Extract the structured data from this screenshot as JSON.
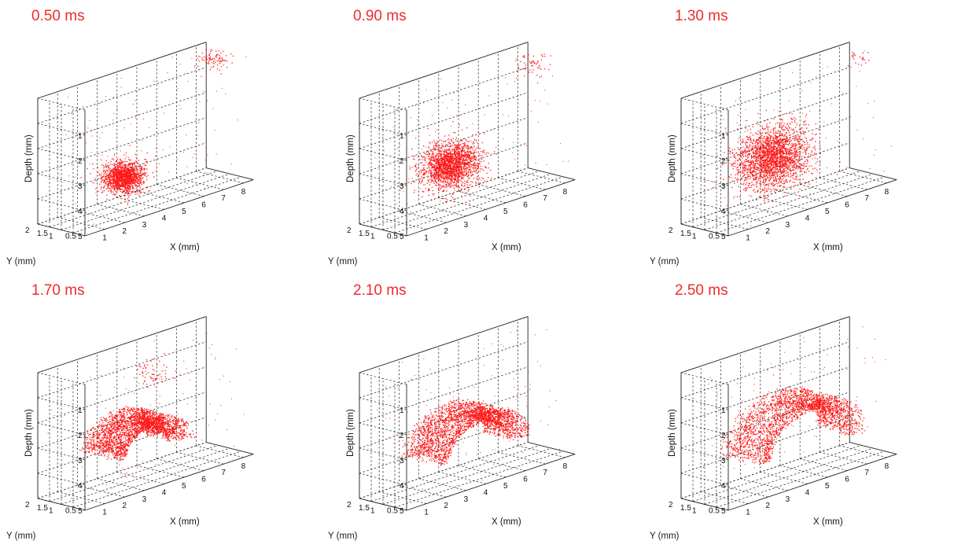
{
  "chart_data": [
    {
      "type": "scatter",
      "title": "0.50 ms",
      "xlabel": "X (mm)",
      "ylabel": "Y (mm)",
      "zlabel": "Depth (mm)",
      "x_ticks": [
        "1",
        "2",
        "3",
        "4",
        "5",
        "6",
        "7",
        "8"
      ],
      "y_ticks": [
        "0.5",
        "1",
        "1.5",
        "2"
      ],
      "z_ticks": [
        "1",
        "2",
        "3",
        "4",
        "5"
      ],
      "xlim": [
        0,
        8.5
      ],
      "ylim": [
        0,
        2
      ],
      "zlim": [
        0,
        5
      ],
      "z_reversed": true,
      "grid": true,
      "point_color": "#ff0000",
      "clusters": [
        {
          "x": 3.1,
          "y": 1.0,
          "z": 3.7,
          "rx": 0.75,
          "ry": 0.6,
          "rz": 0.55,
          "n": 1500
        },
        {
          "x": 7.7,
          "y": 1.0,
          "z": 0.1,
          "rx": 0.6,
          "ry": 0.5,
          "rz": 0.5,
          "n": 130
        }
      ]
    },
    {
      "type": "scatter",
      "title": "0.90 ms",
      "xlabel": "X (mm)",
      "ylabel": "Y (mm)",
      "zlabel": "Depth (mm)",
      "x_ticks": [
        "1",
        "2",
        "3",
        "4",
        "5",
        "6",
        "7",
        "8"
      ],
      "y_ticks": [
        "0.5",
        "1",
        "1.5",
        "2"
      ],
      "z_ticks": [
        "1",
        "2",
        "3",
        "4",
        "5"
      ],
      "xlim": [
        0,
        8.5
      ],
      "ylim": [
        0,
        2
      ],
      "zlim": [
        0,
        5
      ],
      "z_reversed": true,
      "grid": true,
      "point_color": "#ff0000",
      "clusters": [
        {
          "x": 3.4,
          "y": 1.0,
          "z": 3.3,
          "rx": 1.15,
          "ry": 0.75,
          "rz": 0.85,
          "n": 1900
        },
        {
          "x": 7.4,
          "y": 1.0,
          "z": 0.2,
          "rx": 0.6,
          "ry": 0.5,
          "rz": 0.6,
          "n": 80
        }
      ]
    },
    {
      "type": "scatter",
      "title": "1.30 ms",
      "xlabel": "X (mm)",
      "ylabel": "Y (mm)",
      "zlabel": "Depth (mm)",
      "x_ticks": [
        "1",
        "2",
        "3",
        "4",
        "5",
        "6",
        "7",
        "8"
      ],
      "y_ticks": [
        "0.5",
        "1",
        "1.5",
        "2"
      ],
      "z_ticks": [
        "1",
        "2",
        "3",
        "4",
        "5"
      ],
      "xlim": [
        0,
        8.5
      ],
      "ylim": [
        0,
        2
      ],
      "zlim": [
        0,
        5
      ],
      "z_reversed": true,
      "grid": true,
      "point_color": "#ff0000",
      "clusters": [
        {
          "x": 3.4,
          "y": 1.0,
          "z": 3.0,
          "rx": 1.55,
          "ry": 0.8,
          "rz": 1.15,
          "n": 2300
        },
        {
          "x": 7.8,
          "y": 1.0,
          "z": 0.1,
          "rx": 0.4,
          "ry": 0.4,
          "rz": 0.4,
          "n": 30
        }
      ]
    },
    {
      "type": "scatter",
      "title": "1.70 ms",
      "xlabel": "X (mm)",
      "ylabel": "Y (mm)",
      "zlabel": "Depth (mm)",
      "x_ticks": [
        "1",
        "2",
        "3",
        "4",
        "5",
        "6",
        "7",
        "8"
      ],
      "y_ticks": [
        "0.5",
        "1",
        "1.5",
        "2"
      ],
      "z_ticks": [
        "1",
        "2",
        "3",
        "4",
        "5"
      ],
      "xlim": [
        0,
        8.5
      ],
      "ylim": [
        0,
        2
      ],
      "zlim": [
        0,
        5
      ],
      "z_reversed": true,
      "grid": true,
      "point_color": "#ff0000",
      "clusters": [
        {
          "x": 3.8,
          "y": 1.0,
          "z": 3.0,
          "rx": 1.9,
          "ry": 0.85,
          "rz": 1.45,
          "n": 2500,
          "hollow": 0.55
        },
        {
          "x": 4.5,
          "y": 1.0,
          "z": 1.0,
          "rx": 0.8,
          "ry": 0.5,
          "rz": 0.6,
          "n": 60
        }
      ]
    },
    {
      "type": "scatter",
      "title": "2.10 ms",
      "xlabel": "X (mm)",
      "ylabel": "Y (mm)",
      "zlabel": "Depth (mm)",
      "x_ticks": [
        "1",
        "2",
        "3",
        "4",
        "5",
        "6",
        "7",
        "8"
      ],
      "y_ticks": [
        "0.5",
        "1",
        "1.5",
        "2"
      ],
      "z_ticks": [
        "1",
        "2",
        "3",
        "4",
        "5"
      ],
      "xlim": [
        0,
        8.5
      ],
      "ylim": [
        0,
        2
      ],
      "zlim": [
        0,
        5
      ],
      "z_reversed": true,
      "grid": true,
      "point_color": "#ff0000",
      "clusters": [
        {
          "x": 4.2,
          "y": 1.0,
          "z": 3.0,
          "rx": 2.3,
          "ry": 0.85,
          "rz": 1.8,
          "n": 2500,
          "hollow": 0.65
        }
      ]
    },
    {
      "type": "scatter",
      "title": "2.50 ms",
      "xlabel": "X (mm)",
      "ylabel": "Y (mm)",
      "zlabel": "Depth (mm)",
      "x_ticks": [
        "1",
        "2",
        "3",
        "4",
        "5",
        "6",
        "7",
        "8"
      ],
      "y_ticks": [
        "0.5",
        "1",
        "1.5",
        "2"
      ],
      "z_ticks": [
        "1",
        "2",
        "3",
        "4",
        "5"
      ],
      "xlim": [
        0,
        8.5
      ],
      "ylim": [
        0,
        2
      ],
      "zlim": [
        0,
        5
      ],
      "z_reversed": true,
      "grid": true,
      "point_color": "#ff0000",
      "clusters": [
        {
          "x": 4.5,
          "y": 1.0,
          "z": 2.8,
          "rx": 2.7,
          "ry": 0.9,
          "rz": 2.2,
          "n": 2300,
          "hollow": 0.7
        }
      ]
    }
  ]
}
